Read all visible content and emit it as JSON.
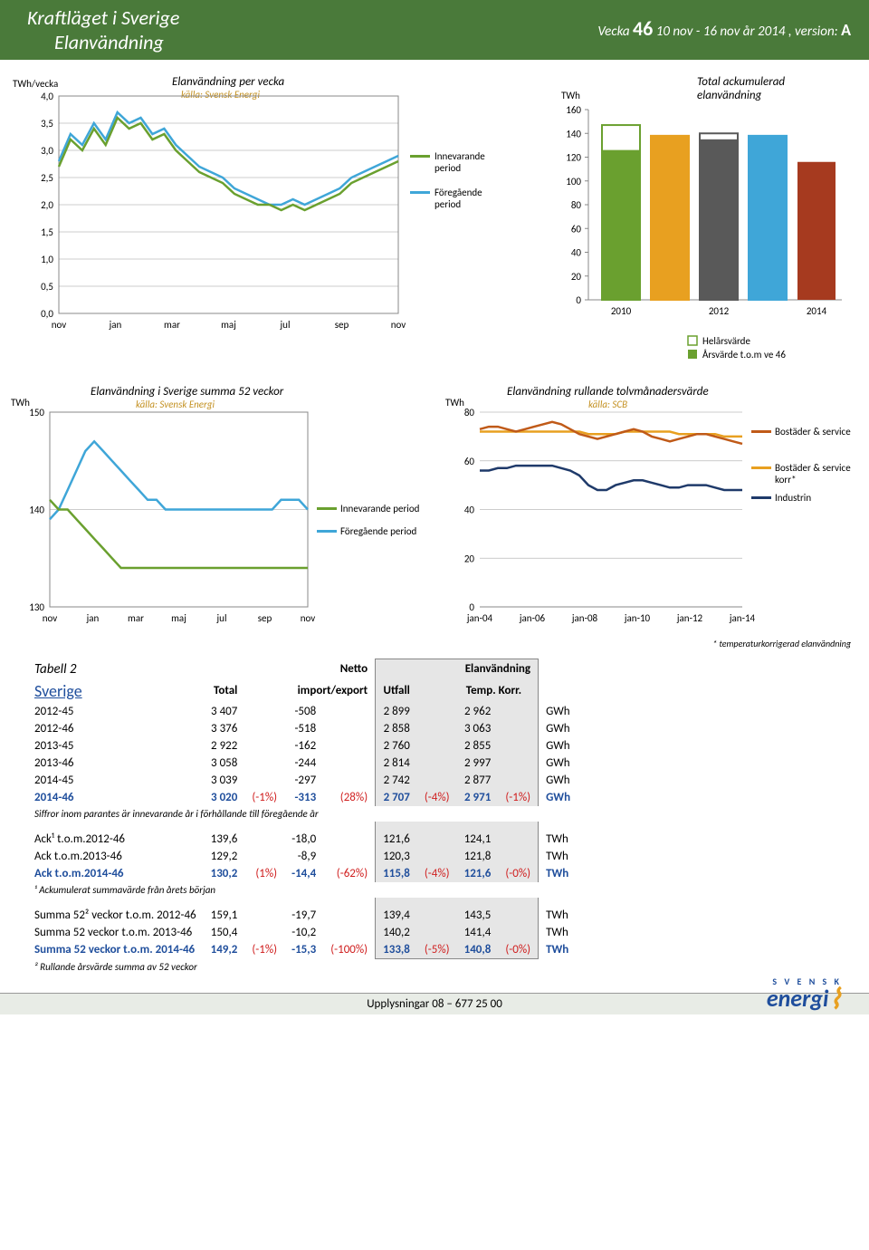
{
  "header": {
    "title1": "Kraftläget i Sverige",
    "title2": "Elanvändning",
    "week_label": "Vecka",
    "week_num": "46",
    "daterange": "10 nov - 16 nov år 2014 ,",
    "version_label": "version:",
    "version": "A"
  },
  "chart1": {
    "title": "Elanvändning per vecka",
    "source": "källa: Svensk Energi",
    "y_unit": "TWh/vecka",
    "legend_current": "Innevarande period",
    "legend_prev": "Föregående period",
    "color_current": "#6aa02f",
    "color_prev": "#3fa6d8",
    "x_labels": [
      "nov",
      "jan",
      "mar",
      "maj",
      "jul",
      "sep",
      "nov"
    ],
    "y_ticks": [
      "0,0",
      "0,5",
      "1,0",
      "1,5",
      "2,0",
      "2,5",
      "3,0",
      "3,5",
      "4,0"
    ],
    "ymin": 0,
    "ymax": 4.0,
    "current": [
      2.7,
      3.2,
      3.0,
      3.4,
      3.1,
      3.6,
      3.4,
      3.5,
      3.2,
      3.3,
      3.0,
      2.8,
      2.6,
      2.5,
      2.4,
      2.2,
      2.1,
      2.0,
      2.0,
      1.9,
      2.0,
      1.9,
      2.0,
      2.1,
      2.2,
      2.4,
      2.5,
      2.6,
      2.7,
      2.8
    ],
    "prev": [
      2.8,
      3.3,
      3.1,
      3.5,
      3.2,
      3.7,
      3.5,
      3.6,
      3.3,
      3.4,
      3.1,
      2.9,
      2.7,
      2.6,
      2.5,
      2.3,
      2.2,
      2.1,
      2.0,
      2.0,
      2.1,
      2.0,
      2.1,
      2.2,
      2.3,
      2.5,
      2.6,
      2.7,
      2.8,
      2.9
    ]
  },
  "chart2": {
    "title": "Total ackumulerad elanvändning",
    "y_unit": "TWh",
    "colors_fill": [
      "#6aa02f",
      "#e8a020",
      "#595959",
      "#3fa6d8",
      "#a63a1f"
    ],
    "outline_prev": true,
    "x_labels": [
      "2010",
      "2012",
      "2014"
    ],
    "y_ticks": [
      0,
      20,
      40,
      60,
      80,
      100,
      120,
      140,
      160
    ],
    "ymax": 160,
    "bars_full": [
      147,
      138,
      140,
      138,
      0
    ],
    "bars_solid": [
      126,
      138,
      135,
      138,
      116
    ],
    "legend_hel": "Helårsvärde",
    "legend_ars": "Årsvärde t.o.m ve 46",
    "col_hel": "#ffffff",
    "col_hel_border": "#6aa02f",
    "col_ars": "#6aa02f"
  },
  "chart3": {
    "title": "Elanvändning i Sverige summa 52 veckor",
    "source": "källa: Svensk Energi",
    "y_unit": "TWh",
    "color_current": "#6aa02f",
    "color_prev": "#3fa6d8",
    "legend_current": "Innevarande period",
    "legend_prev": "Föregående period",
    "x_labels": [
      "nov",
      "jan",
      "mar",
      "maj",
      "jul",
      "sep",
      "nov"
    ],
    "y_ticks": [
      130,
      140,
      150
    ],
    "ymin": 130,
    "ymax": 150,
    "current": [
      141,
      140,
      140,
      139,
      138,
      137,
      136,
      135,
      134,
      134,
      134,
      134,
      134,
      134,
      134,
      134,
      134,
      134,
      134,
      134,
      134,
      134,
      134,
      134,
      134,
      134,
      134,
      134,
      134,
      134
    ],
    "prev": [
      139,
      140,
      142,
      144,
      146,
      147,
      146,
      145,
      144,
      143,
      142,
      141,
      141,
      140,
      140,
      140,
      140,
      140,
      140,
      140,
      140,
      140,
      140,
      140,
      140,
      140,
      141,
      141,
      141,
      140
    ]
  },
  "chart4": {
    "title": "Elanvändning rullande tolvmånadersvärde",
    "source": "källa: SCB",
    "y_unit": "TWh",
    "legend1": "Bostäder & service",
    "col1": "#c05a18",
    "legend2": "Bostäder & service korr*",
    "col2": "#e8a020",
    "legend3": "Industrin",
    "col3": "#1f3a6a",
    "x_labels": [
      "jan-04",
      "jan-06",
      "jan-08",
      "jan-10",
      "jan-12",
      "jan-14"
    ],
    "y_ticks": [
      0,
      20,
      40,
      60,
      80
    ],
    "ymin": 0,
    "ymax": 80,
    "s1": [
      73,
      74,
      74,
      73,
      72,
      73,
      74,
      75,
      76,
      75,
      73,
      71,
      70,
      69,
      70,
      71,
      72,
      73,
      72,
      70,
      69,
      68,
      69,
      70,
      71,
      71,
      70,
      69,
      68,
      67
    ],
    "s2": [
      72,
      72,
      72,
      72,
      72,
      72,
      72,
      72,
      72,
      72,
      72,
      72,
      71,
      71,
      71,
      71,
      72,
      72,
      72,
      72,
      72,
      72,
      71,
      71,
      71,
      71,
      71,
      70,
      70,
      70
    ],
    "s3": [
      56,
      56,
      57,
      57,
      58,
      58,
      58,
      58,
      58,
      57,
      56,
      54,
      50,
      48,
      48,
      50,
      51,
      52,
      52,
      51,
      50,
      49,
      49,
      50,
      50,
      50,
      49,
      48,
      48,
      48
    ],
    "footnote": "* temperaturkorrigerad elanvändning"
  },
  "table": {
    "tabell_label": "Tabell 2",
    "sverige": "Sverige",
    "head_total": "Total",
    "head_netto": "Netto",
    "head_imp": "import/export",
    "head_el": "Elanvändning",
    "head_utfall": "Utfall",
    "head_temp": "Temp. Korr.",
    "rows": [
      {
        "lbl": "2012-45",
        "total": "3 407",
        "imp": "-508",
        "utfall": "2 899",
        "temp": "2 962",
        "u": "GWh"
      },
      {
        "lbl": "2012-46",
        "total": "3 376",
        "imp": "-518",
        "utfall": "2 858",
        "temp": "3 063",
        "u": "GWh"
      },
      {
        "lbl": "2013-45",
        "total": "2 922",
        "imp": "-162",
        "utfall": "2 760",
        "temp": "2 855",
        "u": "GWh"
      },
      {
        "lbl": "2013-46",
        "total": "3 058",
        "imp": "-244",
        "utfall": "2 814",
        "temp": "2 997",
        "u": "GWh"
      },
      {
        "lbl": "2014-45",
        "total": "3 039",
        "imp": "-297",
        "utfall": "2 742",
        "temp": "2 877",
        "u": "GWh"
      }
    ],
    "row_blue": {
      "lbl": "2014-46",
      "total": "3 020",
      "tp": "(-1%)",
      "imp": "-313",
      "ip": "(28%)",
      "utfall": "2 707",
      "up": "(-4%)",
      "temp": "2 971",
      "tmp": "(-1%)",
      "u": "GWh"
    },
    "note1": "Siffror inom parantes är innevarande år i förhållande till föregående år",
    "ack_rows": [
      {
        "lbl": "Ack¹ t.o.m.2012-46",
        "total": "139,6",
        "imp": "-18,0",
        "utfall": "121,6",
        "temp": "124,1",
        "u": "TWh"
      },
      {
        "lbl": "Ack t.o.m.2013-46",
        "total": "129,2",
        "imp": "-8,9",
        "utfall": "120,3",
        "temp": "121,8",
        "u": "TWh"
      }
    ],
    "ack_blue": {
      "lbl": "Ack t.o.m.2014-46",
      "total": "130,2",
      "tp": "(1%)",
      "imp": "-14,4",
      "ip": "(-62%)",
      "utfall": "115,8",
      "up": "(-4%)",
      "temp": "121,6",
      "tmp": "(-0%)",
      "u": "TWh"
    },
    "note2": "¹ Ackumulerat summavärde från årets början",
    "s52_rows": [
      {
        "lbl": "Summa 52² veckor t.o.m. 2012-46",
        "total": "159,1",
        "imp": "-19,7",
        "utfall": "139,4",
        "temp": "143,5",
        "u": "TWh"
      },
      {
        "lbl": "Summa 52 veckor t.o.m. 2013-46",
        "total": "150,4",
        "imp": "-10,2",
        "utfall": "140,2",
        "temp": "141,4",
        "u": "TWh"
      }
    ],
    "s52_blue": {
      "lbl": "Summa 52 veckor t.o.m. 2014-46",
      "total": "149,2",
      "tp": "(-1%)",
      "imp": "-15,3",
      "ip": "(-100%)",
      "utfall": "133,8",
      "up": "(-5%)",
      "temp": "140,8",
      "tmp": "(-0%)",
      "u": "TWh"
    },
    "note3": "² Rullande årsvärde summa av 52 veckor"
  },
  "footer": {
    "text": "Upplysningar 08 – 677 25 00",
    "logo1": "S V E N S K",
    "logo2": "energi"
  }
}
